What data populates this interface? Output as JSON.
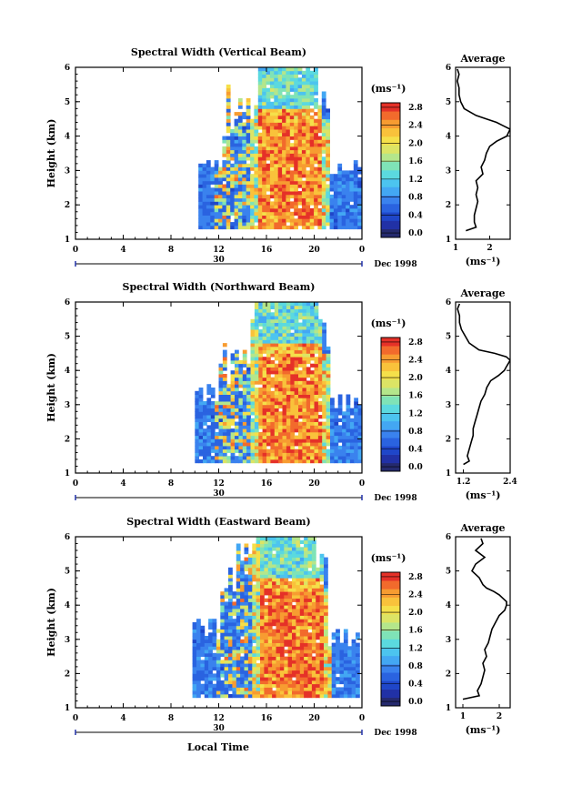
{
  "figure": {
    "time_axis_label": "Local Time",
    "date_number": "30",
    "date_label": "Dec 1998",
    "colorbar_unit": "(ms⁻¹)",
    "avg_unit": "(ms⁻¹)",
    "avg_title": "Average",
    "height_label": "Height (km)"
  },
  "chart_data": [
    {
      "type": "heatmap",
      "title": "Spectral Width (Vertical Beam)",
      "xlabel": "",
      "ylabel": "Height (km)",
      "x_ticks": [
        "0",
        "4",
        "8",
        "12",
        "16",
        "20",
        "0"
      ],
      "y_ticks": [
        "1",
        "2",
        "3",
        "4",
        "5",
        "6"
      ],
      "xlim": [
        0,
        24
      ],
      "ylim": [
        1,
        6
      ],
      "colorbar": {
        "unit": "(ms⁻¹)",
        "ticks": [
          "0.0",
          "0.4",
          "0.8",
          "1.2",
          "1.6",
          "2.0",
          "2.4",
          "2.8"
        ],
        "range": [
          0,
          3.0
        ]
      },
      "data_extent": {
        "time_start": 10.3,
        "time_end": 23.8,
        "height_min": 1.3
      },
      "average_profile": {
        "title": "Average",
        "xlabel": "(ms⁻¹)",
        "x_ticks": [
          "1",
          "2"
        ],
        "xlim": [
          1.0,
          2.6
        ],
        "height": [
          1.25,
          1.35,
          1.5,
          1.7,
          1.9,
          2.1,
          2.3,
          2.5,
          2.7,
          2.9,
          3.1,
          3.3,
          3.5,
          3.7,
          3.85,
          4.0,
          4.1,
          4.2,
          4.3,
          4.4,
          4.5,
          4.6,
          4.8,
          5.0,
          5.2,
          5.4,
          5.6,
          5.8,
          5.95
        ],
        "value": [
          1.3,
          1.6,
          1.55,
          1.55,
          1.6,
          1.65,
          1.6,
          1.65,
          1.6,
          1.8,
          1.75,
          1.85,
          1.9,
          2.0,
          2.2,
          2.5,
          2.55,
          2.6,
          2.4,
          2.2,
          1.9,
          1.6,
          1.25,
          1.15,
          1.1,
          1.1,
          1.05,
          1.1,
          1.05
        ]
      }
    },
    {
      "type": "heatmap",
      "title": "Spectral Width (Northward Beam)",
      "xlabel": "",
      "ylabel": "Height (km)",
      "x_ticks": [
        "0",
        "4",
        "8",
        "12",
        "16",
        "20",
        "0"
      ],
      "y_ticks": [
        "1",
        "2",
        "3",
        "4",
        "5",
        "6"
      ],
      "xlim": [
        0,
        24
      ],
      "ylim": [
        1,
        6
      ],
      "colorbar": {
        "unit": "(ms⁻¹)",
        "ticks": [
          "0.0",
          "0.4",
          "0.8",
          "1.2",
          "1.6",
          "2.0",
          "2.4",
          "2.8"
        ],
        "range": [
          0,
          3.0
        ]
      },
      "data_extent": {
        "time_start": 10.0,
        "time_end": 23.9,
        "height_min": 1.3
      },
      "average_profile": {
        "title": "Average",
        "xlabel": "(ms⁻¹)",
        "x_ticks": [
          "1.2",
          "2.4"
        ],
        "xlim": [
          1.0,
          2.4
        ],
        "height": [
          1.25,
          1.35,
          1.5,
          1.7,
          1.9,
          2.1,
          2.3,
          2.5,
          2.7,
          2.9,
          3.1,
          3.3,
          3.5,
          3.7,
          3.85,
          4.0,
          4.1,
          4.2,
          4.3,
          4.4,
          4.5,
          4.6,
          4.8,
          5.0,
          5.2,
          5.4,
          5.6,
          5.8,
          5.95
        ],
        "value": [
          1.2,
          1.35,
          1.3,
          1.35,
          1.4,
          1.45,
          1.45,
          1.5,
          1.55,
          1.6,
          1.65,
          1.75,
          1.8,
          1.9,
          2.1,
          2.25,
          2.3,
          2.35,
          2.4,
          2.3,
          2.0,
          1.6,
          1.35,
          1.25,
          1.15,
          1.1,
          1.1,
          1.05,
          1.1
        ]
      }
    },
    {
      "type": "heatmap",
      "title": "Spectral Width (Eastward Beam)",
      "xlabel": "Local Time",
      "ylabel": "Height (km)",
      "x_ticks": [
        "0",
        "4",
        "8",
        "12",
        "16",
        "20",
        "0"
      ],
      "y_ticks": [
        "1",
        "2",
        "3",
        "4",
        "5",
        "6"
      ],
      "xlim": [
        0,
        24
      ],
      "ylim": [
        1,
        6
      ],
      "colorbar": {
        "unit": "(ms⁻¹)",
        "ticks": [
          "0.0",
          "0.4",
          "0.8",
          "1.2",
          "1.6",
          "2.0",
          "2.4",
          "2.8"
        ],
        "range": [
          0,
          3.0
        ]
      },
      "data_extent": {
        "time_start": 9.8,
        "time_end": 23.7,
        "height_min": 1.3
      },
      "average_profile": {
        "title": "Average",
        "xlabel": "(ms⁻¹)",
        "x_ticks": [
          "1",
          "2"
        ],
        "xlim": [
          0.8,
          2.3
        ],
        "height": [
          1.25,
          1.35,
          1.5,
          1.7,
          1.9,
          2.1,
          2.3,
          2.5,
          2.7,
          2.9,
          3.1,
          3.3,
          3.5,
          3.7,
          3.85,
          4.0,
          4.1,
          4.2,
          4.3,
          4.4,
          4.5,
          4.6,
          4.8,
          5.0,
          5.2,
          5.4,
          5.6,
          5.8,
          5.95
        ],
        "value": [
          1.0,
          1.45,
          1.4,
          1.5,
          1.55,
          1.6,
          1.55,
          1.65,
          1.6,
          1.7,
          1.75,
          1.8,
          1.9,
          2.0,
          2.15,
          2.2,
          2.2,
          2.1,
          2.0,
          1.85,
          1.65,
          1.55,
          1.45,
          1.25,
          1.35,
          1.6,
          1.35,
          1.55,
          1.5
        ]
      }
    }
  ]
}
